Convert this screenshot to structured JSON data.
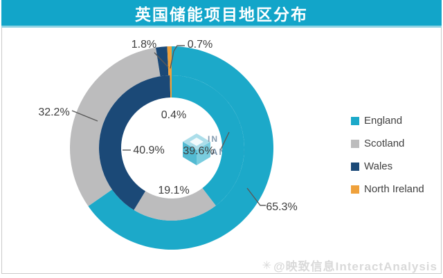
{
  "window": {
    "title": "英国储能项目地区分布"
  },
  "chart_data": {
    "type": "pie",
    "subtype": "double_doughnut",
    "title": "英国储能项目地区分布",
    "categories": [
      "England",
      "Scotland",
      "Wales",
      "North Ireland"
    ],
    "colors": [
      "#1CA9C9",
      "#BCBCBD",
      "#1B4977",
      "#EFA13B"
    ],
    "series": [
      {
        "name": "outer-ring",
        "values": [
          65.3,
          32.2,
          1.8,
          0.7
        ],
        "labels": [
          "65.3%",
          "32.2%",
          "1.8%",
          "0.7%"
        ]
      },
      {
        "name": "inner-ring",
        "values": [
          39.6,
          19.1,
          40.9,
          0.4
        ],
        "labels": [
          "39.6%",
          "19.1%",
          "40.9%",
          "0.4%"
        ]
      }
    ],
    "start_angle_deg": 0,
    "direction": "clockwise",
    "legend_position": "right",
    "grid": false
  },
  "legend": {
    "items": [
      {
        "label": "England",
        "color": "#1CA9C9"
      },
      {
        "label": "Scotland",
        "color": "#BCBCBD"
      },
      {
        "label": "Wales",
        "color": "#1B4977"
      },
      {
        "label": "North Ireland",
        "color": "#EFA13B"
      }
    ]
  },
  "watermarks": {
    "center_logo_top": "IN",
    "center_logo_bottom": "ANALYSIS",
    "bottom_icon": "✳",
    "bottom_text": "@映致信息InteractAnalysis"
  },
  "theme": {
    "titlebar_color": "#12A5C9",
    "title_text_color": "#FFFFFF",
    "label_color": "#3D3D3D",
    "leader_line_color": "#595959",
    "panel_border_color": "#C9C9C9"
  }
}
